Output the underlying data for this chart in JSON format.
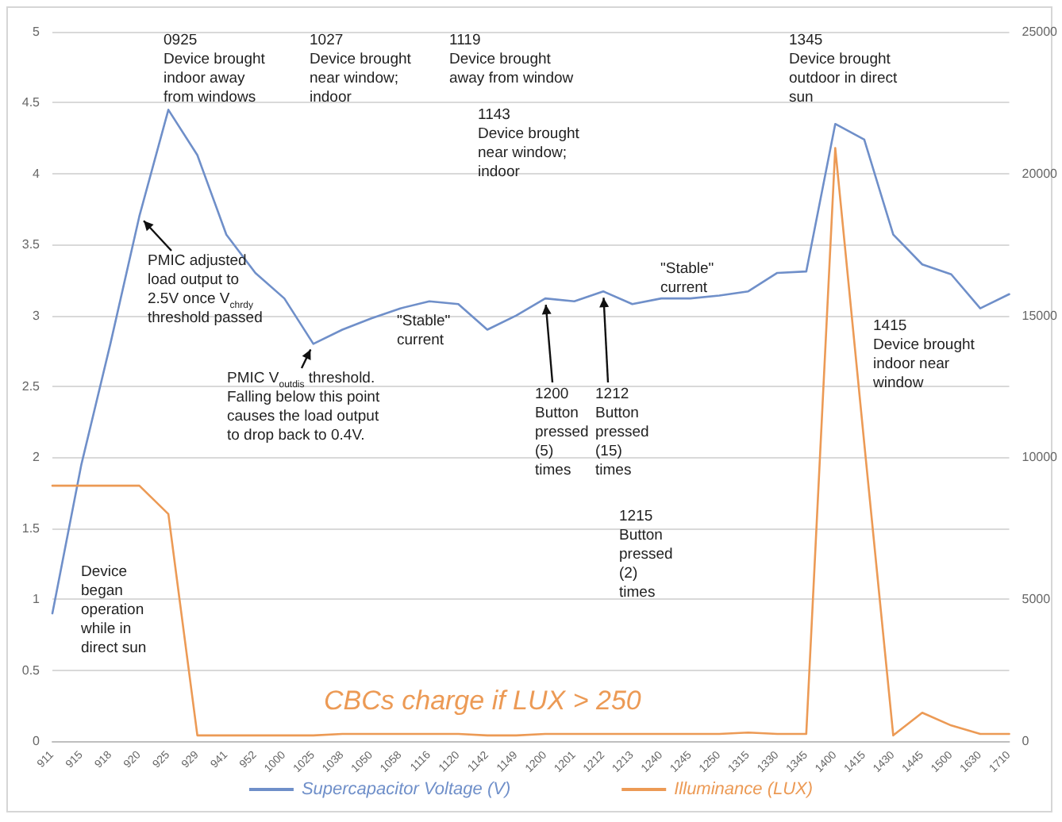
{
  "chart_data": {
    "type": "line",
    "categories": [
      "911",
      "915",
      "918",
      "920",
      "925",
      "929",
      "941",
      "952",
      "1000",
      "1025",
      "1038",
      "1050",
      "1058",
      "1116",
      "1120",
      "1142",
      "1149",
      "1200",
      "1201",
      "1212",
      "1213",
      "1240",
      "1245",
      "1250",
      "1315",
      "1330",
      "1345",
      "1400",
      "1415",
      "1430",
      "1445",
      "1500",
      "1630",
      "1710"
    ],
    "series": [
      {
        "name": "Supercapacitor Voltage (V)",
        "color": "#6f8fc9",
        "values": [
          0.9,
          1.95,
          2.8,
          3.7,
          4.45,
          4.13,
          3.57,
          3.3,
          3.12,
          2.8,
          2.9,
          2.98,
          3.05,
          3.1,
          3.08,
          2.9,
          3.0,
          3.12,
          3.1,
          3.17,
          3.08,
          3.12,
          3.12,
          3.14,
          3.17,
          3.3,
          3.31,
          4.35,
          4.24,
          3.57,
          3.36,
          3.29,
          3.05,
          3.15
        ]
      },
      {
        "name": "Illuminance (LUX)",
        "color": "#ec9a55",
        "axis": "y2",
        "values": [
          9000,
          9000,
          9000,
          9000,
          8000,
          200,
          200,
          200,
          200,
          200,
          250,
          250,
          250,
          250,
          250,
          200,
          200,
          250,
          250,
          250,
          250,
          250,
          250,
          250,
          300,
          250,
          250,
          20900,
          10500,
          200,
          1000,
          550,
          250,
          250
        ]
      }
    ],
    "ylim": [
      0,
      5
    ],
    "yticks": [
      0,
      0.5,
      1,
      1.5,
      2,
      2.5,
      3,
      3.5,
      4,
      4.5,
      5
    ],
    "y2lim": [
      0,
      25000
    ],
    "y2ticks": [
      0,
      5000,
      10000,
      15000,
      20000,
      25000
    ],
    "grid": "y",
    "legend": "bottom",
    "marker": "none",
    "line_style": "solid",
    "annotations": [
      "0925\nDevice brought\nindoor away\nfrom windows",
      "1027\nDevice brought\nnear window;\nindoor",
      "1119\nDevice brought\naway from window",
      "1143\nDevice brought\nnear window;\nindoor",
      "1345\nDevice brought\noutdoor in direct\nsun",
      {
        "text": "PMIC adjusted\nload output to\n2.5V once V$_{chrdy}$\nthreshold passed",
        "x": "920",
        "y": 3.7
      },
      "\"Stable\"\ncurrent",
      {
        "text": "PMIC V$_{outdis}$ threshold.\nFalling below this point\ncauses the load output\nto drop back to 0.4V.",
        "x": "1025",
        "y": 2.8
      },
      {
        "text": "1200\nButton\npressed\n(5)\ntimes",
        "x": "1200",
        "y": 3.12
      },
      {
        "text": "1212\nButton\npressed\n(15)\ntimes",
        "x": "1212",
        "y": 3.17
      },
      "1215\nButton\npressed\n(2)\ntimes",
      "\"Stable\"\ncurrent",
      "1415\nDevice brought\nindoor near\nwindow",
      "Device\nbegan\noperation\nwhile in\ndirect sun",
      "CBCs charge if LUX > 250"
    ]
  }
}
